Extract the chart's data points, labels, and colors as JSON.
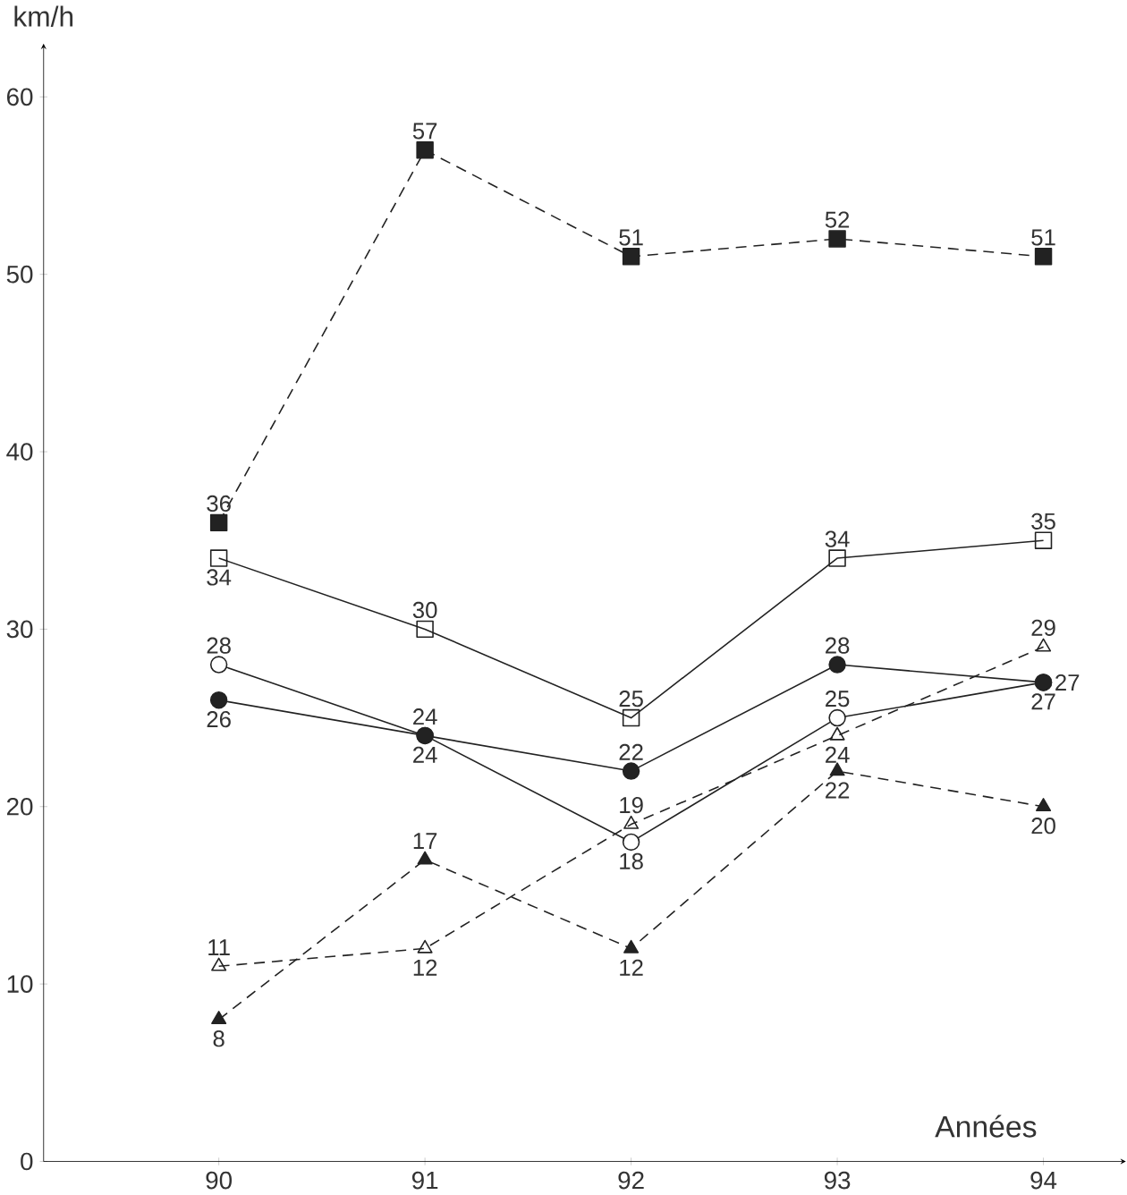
{
  "chart_data": {
    "type": "line",
    "xlabel": "Années",
    "ylabel": "km/h",
    "categories": [
      "90",
      "91",
      "92",
      "93",
      "94"
    ],
    "ylim": [
      0,
      63
    ],
    "yticks": [
      0,
      10,
      20,
      30,
      40,
      50,
      60
    ],
    "grid": false,
    "data_labels": true,
    "series": [
      {
        "color": "#222222",
        "marker": "square",
        "line_style": "dashed",
        "values": [
          36,
          57,
          51,
          52,
          51
        ]
      },
      {
        "color": "#222222",
        "marker": "square",
        "line_style": "solid",
        "values": [
          34,
          30,
          25,
          34,
          35
        ]
      },
      {
        "color": "#222222",
        "marker": "circle",
        "line_style": "solid",
        "values": [
          28,
          24,
          18,
          25,
          27
        ]
      },
      {
        "color": "#222222",
        "marker": "circle",
        "line_style": "solid",
        "values": [
          26,
          24,
          22,
          28,
          27
        ]
      },
      {
        "color": "#222222",
        "marker": "triangle",
        "line_style": "dashed",
        "values": [
          8,
          17,
          12,
          22,
          20
        ]
      },
      {
        "color": "#222222",
        "marker": "triangle",
        "line_style": "dashed",
        "values": [
          11,
          12,
          19,
          24,
          29
        ]
      }
    ]
  }
}
